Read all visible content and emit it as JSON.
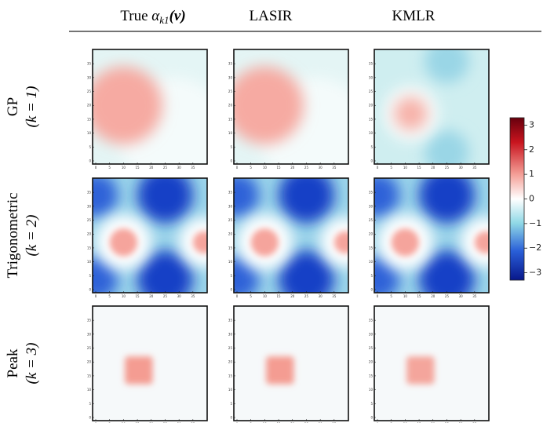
{
  "header": {
    "columns": [
      {
        "text": "True ",
        "symbol": "α",
        "subscript": "k1",
        "arg": "(v)"
      },
      {
        "text": "LASIR"
      },
      {
        "text": "KMLR"
      }
    ]
  },
  "rows": [
    {
      "name": "GP",
      "param": "(k = 1)"
    },
    {
      "name": "Trigonometric",
      "param": "(k = 2)"
    },
    {
      "name": "Peak",
      "param": "(k = 3)"
    }
  ],
  "panel_axes": {
    "lim": [
      0,
      39
    ],
    "ticks": [
      0,
      5,
      10,
      15,
      20,
      25,
      30,
      35
    ]
  },
  "colorbar": {
    "lim": [
      -3.3,
      3.3
    ],
    "ticks": [
      {
        "value": 3,
        "label": "3"
      },
      {
        "value": 2,
        "label": "2"
      },
      {
        "value": 1,
        "label": "1"
      },
      {
        "value": 0,
        "label": "0"
      },
      {
        "value": -1,
        "label": "−1"
      },
      {
        "value": -2,
        "label": "−2"
      },
      {
        "value": -3,
        "label": "−3"
      }
    ]
  }
}
